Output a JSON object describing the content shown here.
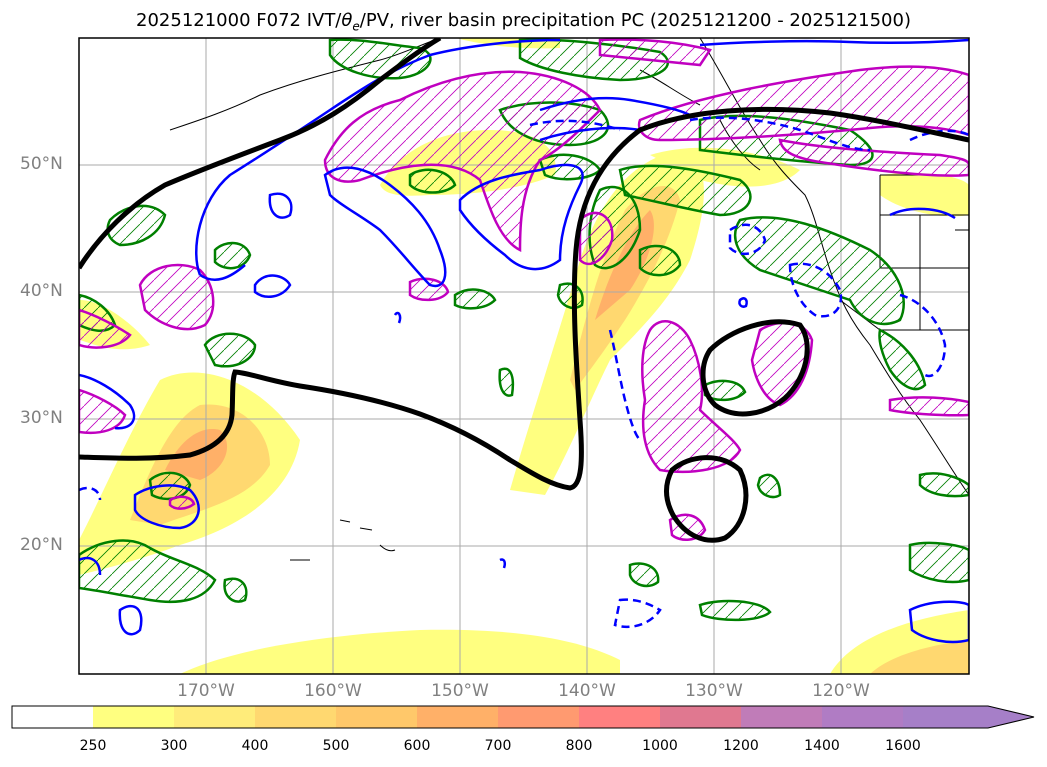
{
  "title": {
    "prefix": "2025121000 F072 IVT/",
    "theta": "θ",
    "sub": "e",
    "suffix": "/PV, river basin precipitation PC (2025121200 - 2025121500)"
  },
  "map": {
    "lat_labels": [
      "50°N",
      "40°N",
      "30°N",
      "20°N"
    ],
    "lon_labels": [
      "170°W",
      "160°W",
      "150°W",
      "140°W",
      "130°W",
      "120°W"
    ],
    "extent": {
      "lon_min": -180,
      "lon_max": -110,
      "lat_min": 10,
      "lat_max": 60
    },
    "gridlines": true,
    "contour_colors": {
      "theta_e": "#0000ff",
      "pv": "#c000c0",
      "precip_pc": "#008000",
      "ivt_outline": "#000000"
    }
  },
  "colorbar": {
    "levels": [
      "250",
      "300",
      "400",
      "500",
      "600",
      "700",
      "800",
      "1000",
      "1200",
      "1400",
      "1600"
    ],
    "colors": [
      "#ffffff",
      "#ffff80",
      "#ffec7a",
      "#ffd870",
      "#ffc86a",
      "#ffb068",
      "#ff9a70",
      "#ff8080",
      "#e07890",
      "#c07cb8",
      "#a67fc8"
    ],
    "extend": "max"
  }
}
